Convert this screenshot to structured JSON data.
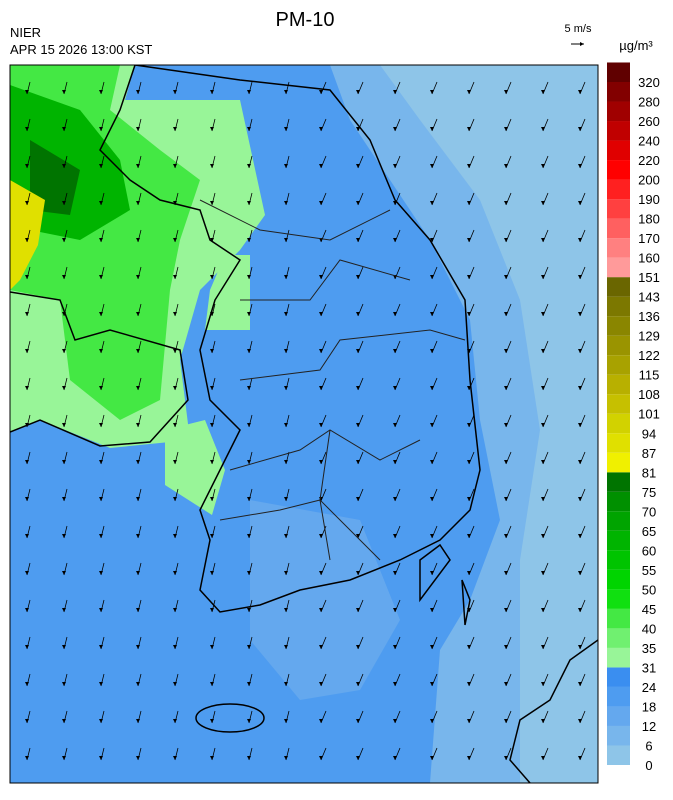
{
  "header": {
    "title": "PM-10",
    "agency": "NIER",
    "timestamp": "APR 15 2026 13:00 KST",
    "wind_scale": "5 m/s"
  },
  "colorbar": {
    "unit": "µg/m³",
    "ticks": [
      0,
      6,
      12,
      18,
      24,
      31,
      35,
      40,
      45,
      50,
      55,
      60,
      65,
      70,
      75,
      81,
      87,
      94,
      101,
      108,
      115,
      122,
      129,
      136,
      143,
      151,
      160,
      170,
      180,
      190,
      200,
      220,
      240,
      260,
      280,
      320
    ],
    "colors": [
      "#8ec5e8",
      "#78b6ec",
      "#64a8ee",
      "#4e9cf0",
      "#3a8ef0",
      "#98f598",
      "#70f070",
      "#44e844",
      "#10e010",
      "#00d400",
      "#00c400",
      "#00b400",
      "#00a400",
      "#009000",
      "#007400",
      "#f0f000",
      "#e0e000",
      "#d2d200",
      "#c6c000",
      "#b8b000",
      "#a8a200",
      "#9a9400",
      "#8a8600",
      "#7c7800",
      "#6a6600",
      "#ff9a9a",
      "#ff8080",
      "#ff6060",
      "#ff4040",
      "#ff2020",
      "#ff0000",
      "#e00000",
      "#c00000",
      "#a00000",
      "#820000",
      "#600000"
    ]
  }
}
